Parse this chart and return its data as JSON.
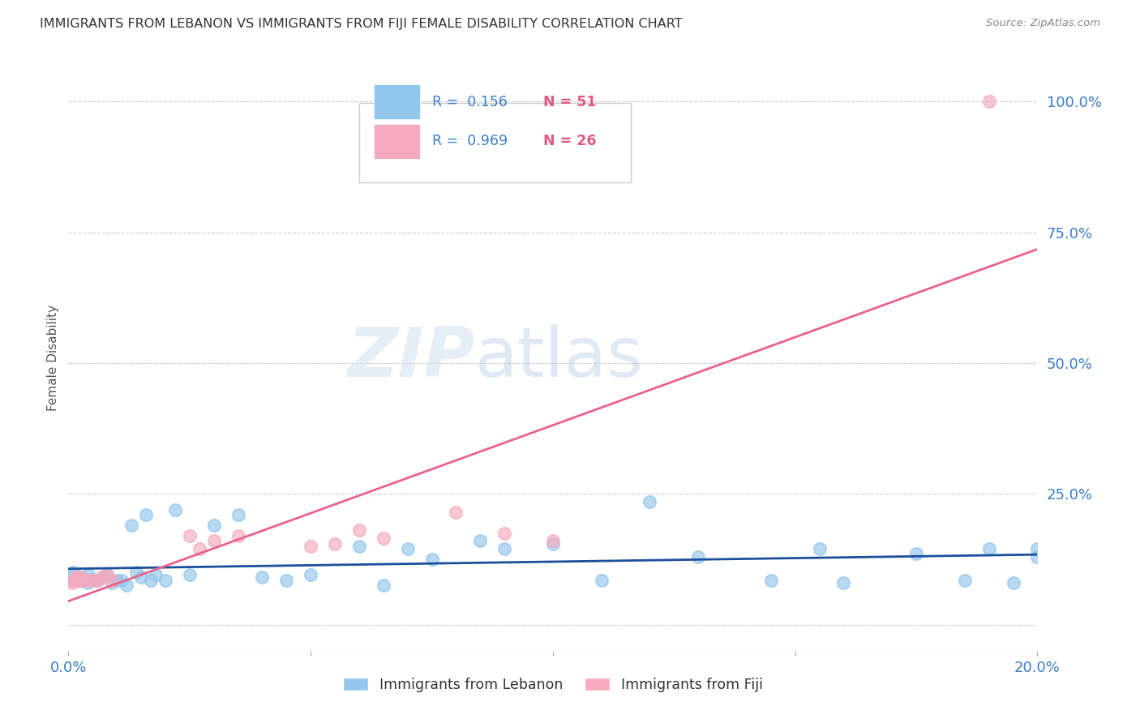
{
  "title": "IMMIGRANTS FROM LEBANON VS IMMIGRANTS FROM FIJI FEMALE DISABILITY CORRELATION CHART",
  "source": "Source: ZipAtlas.com",
  "ylabel": "Female Disability",
  "xlim": [
    0.0,
    0.2
  ],
  "ylim": [
    -0.05,
    1.07
  ],
  "ytick_vals": [
    0.0,
    0.25,
    0.5,
    0.75,
    1.0
  ],
  "ytick_labels": [
    "",
    "25.0%",
    "50.0%",
    "75.0%",
    "100.0%"
  ],
  "xtick_vals": [
    0.0,
    0.05,
    0.1,
    0.15,
    0.2
  ],
  "xtick_labels": [
    "0.0%",
    "",
    "",
    "",
    "20.0%"
  ],
  "color_lebanon": "#93C6EC",
  "color_fiji": "#F5AABE",
  "color_line_lebanon": "#1B4F9B",
  "color_line_fiji": "#E8638A",
  "color_tick_label": "#3A7DC9",
  "watermark_zip": "ZIP",
  "watermark_atlas": "atlas",
  "legend_items": [
    {
      "color": "#93C6EC",
      "r": "0.156",
      "n": "51"
    },
    {
      "color": "#F5AABE",
      "r": "0.969",
      "n": "26"
    }
  ],
  "legend_label_color": "#3A7DC9",
  "legend_n_color": "#E05A80",
  "lebanon_x": [
    0.0008,
    0.001,
    0.0015,
    0.002,
    0.0022,
    0.0025,
    0.003,
    0.0032,
    0.004,
    0.0042,
    0.005,
    0.006,
    0.007,
    0.008,
    0.009,
    0.01,
    0.011,
    0.012,
    0.013,
    0.014,
    0.015,
    0.016,
    0.017,
    0.018,
    0.02,
    0.022,
    0.025,
    0.03,
    0.035,
    0.04,
    0.045,
    0.05,
    0.06,
    0.065,
    0.07,
    0.075,
    0.085,
    0.09,
    0.1,
    0.11,
    0.12,
    0.13,
    0.145,
    0.155,
    0.16,
    0.175,
    0.185,
    0.19,
    0.195,
    0.2,
    0.2
  ],
  "lebanon_y": [
    0.09,
    0.1,
    0.085,
    0.085,
    0.09,
    0.085,
    0.09,
    0.085,
    0.08,
    0.095,
    0.085,
    0.085,
    0.09,
    0.095,
    0.08,
    0.085,
    0.085,
    0.075,
    0.19,
    0.1,
    0.09,
    0.21,
    0.085,
    0.095,
    0.085,
    0.22,
    0.095,
    0.19,
    0.21,
    0.09,
    0.085,
    0.095,
    0.15,
    0.075,
    0.145,
    0.125,
    0.16,
    0.145,
    0.155,
    0.085,
    0.235,
    0.13,
    0.085,
    0.145,
    0.08,
    0.135,
    0.085,
    0.145,
    0.08,
    0.145,
    0.13
  ],
  "fiji_x": [
    0.0008,
    0.001,
    0.0015,
    0.0018,
    0.002,
    0.0022,
    0.0025,
    0.003,
    0.004,
    0.005,
    0.006,
    0.007,
    0.008,
    0.009,
    0.025,
    0.027,
    0.03,
    0.035,
    0.05,
    0.055,
    0.06,
    0.065,
    0.08,
    0.09,
    0.1,
    0.19
  ],
  "fiji_y": [
    0.08,
    0.085,
    0.085,
    0.09,
    0.085,
    0.09,
    0.09,
    0.085,
    0.085,
    0.085,
    0.085,
    0.09,
    0.095,
    0.085,
    0.17,
    0.145,
    0.16,
    0.17,
    0.15,
    0.155,
    0.18,
    0.165,
    0.215,
    0.175,
    0.16,
    1.0
  ]
}
